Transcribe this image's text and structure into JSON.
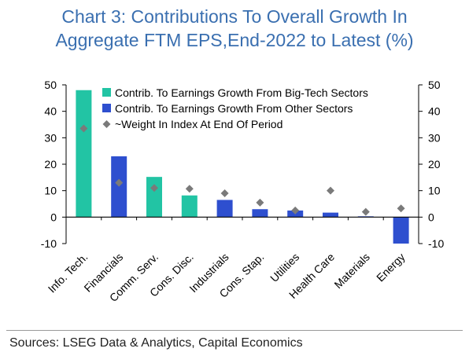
{
  "title_line1": "Chart 3: Contributions To Overall Growth In",
  "title_line2": "Aggregate FTM EPS,End-2022 to Latest (%)",
  "source": "Sources: LSEG Data & Analytics, Capital Economics",
  "colors": {
    "bigtech": "#22c4a4",
    "other": "#2e4fcf",
    "weight": "#7a7a7a",
    "title": "#3a6fb0"
  },
  "chart_data": {
    "type": "bar",
    "categories": [
      "Info. Tech.",
      "Financials",
      "Comm. Serv.",
      "Cons. Disc.",
      "Industrials",
      "Cons. Stap.",
      "Utilities",
      "Health Care",
      "Materials",
      "Energy"
    ],
    "series": [
      {
        "name": "Contrib. To Earnings Growth From Big-Tech Sectors",
        "kind": "bar",
        "color": "#22c4a4",
        "values": [
          48,
          null,
          15.2,
          8.2,
          null,
          null,
          null,
          null,
          null,
          null
        ]
      },
      {
        "name": "Contrib. To Earnings Growth From Other Sectors",
        "kind": "bar",
        "color": "#2e4fcf",
        "values": [
          null,
          23,
          null,
          null,
          6.5,
          3,
          2.5,
          1.7,
          0.3,
          -10
        ]
      },
      {
        "name": "~Weight In Index At End Of Period",
        "kind": "marker",
        "color": "#7a7a7a",
        "values": [
          33.5,
          13,
          11,
          10.7,
          9,
          5.5,
          2.5,
          10,
          2,
          3.3
        ]
      }
    ],
    "ylim": [
      -10,
      50
    ],
    "yticks": [
      -10,
      0,
      10,
      20,
      30,
      40,
      50
    ],
    "legend_position": "top-right"
  }
}
